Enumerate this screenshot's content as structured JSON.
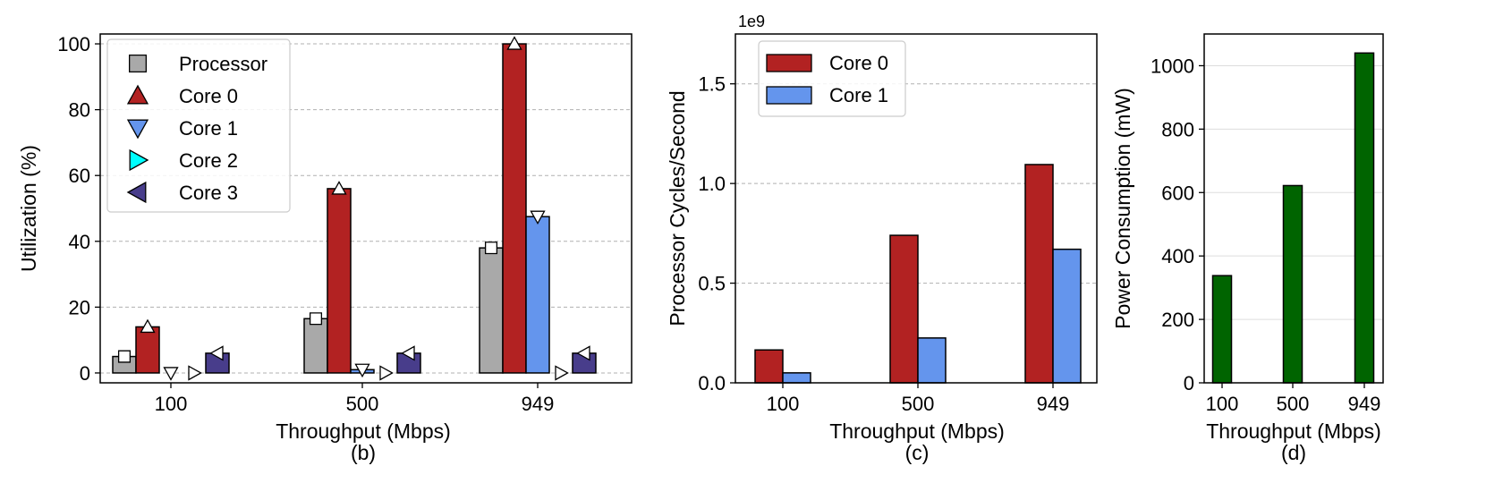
{
  "chart_data": [
    {
      "type": "bar",
      "panel_label": "(b)",
      "xlabel": "Throughput (Mbps)",
      "ylabel": "Utilization (%)",
      "categories": [
        "100",
        "500",
        "949"
      ],
      "ylim": [
        -3,
        103
      ],
      "yticks": [
        0,
        20,
        40,
        60,
        80,
        100
      ],
      "grid": "y-dashed",
      "legend_position": "top-left",
      "series": [
        {
          "name": "Processor",
          "color": "#a9a9a9",
          "marker": "square",
          "values": [
            5,
            16.5,
            38
          ]
        },
        {
          "name": "Core 0",
          "color": "#b22222",
          "marker": "triangle-up",
          "values": [
            14,
            56,
            100
          ]
        },
        {
          "name": "Core 1",
          "color": "#6495ed",
          "marker": "triangle-down",
          "values": [
            0,
            1,
            47.5
          ]
        },
        {
          "name": "Core 2",
          "color": "#00ffff",
          "marker": "triangle-right",
          "values": [
            0,
            0,
            0
          ]
        },
        {
          "name": "Core 3",
          "color": "#483d8b",
          "marker": "triangle-left",
          "values": [
            6,
            6,
            6
          ]
        }
      ]
    },
    {
      "type": "bar",
      "panel_label": "(c)",
      "xlabel": "Throughput (Mbps)",
      "ylabel": "Processor Cycles/Second",
      "offset_text": "1e9",
      "categories": [
        "100",
        "500",
        "949"
      ],
      "ylim": [
        0,
        1.75
      ],
      "yticks": [
        0.0,
        0.5,
        1.0,
        1.5
      ],
      "ytick_labels": [
        "0.0",
        "0.5",
        "1.0",
        "1.5"
      ],
      "grid": "y-dashed",
      "legend_position": "top-left",
      "series": [
        {
          "name": "Core 0",
          "color": "#b22222",
          "values": [
            0.165,
            0.74,
            1.095
          ]
        },
        {
          "name": "Core 1",
          "color": "#6495ed",
          "values": [
            0.05,
            0.225,
            0.67
          ]
        }
      ]
    },
    {
      "type": "bar",
      "panel_label": "(d)",
      "xlabel": "Throughput (Mbps)",
      "ylabel": "Power Consumption (mW)",
      "categories": [
        "100",
        "500",
        "949"
      ],
      "ylim": [
        0,
        1100
      ],
      "yticks": [
        0,
        200,
        400,
        600,
        800,
        1000
      ],
      "grid": "y-solid-light",
      "series": [
        {
          "color": "#006400",
          "values": [
            338,
            622,
            1040
          ]
        }
      ]
    }
  ]
}
